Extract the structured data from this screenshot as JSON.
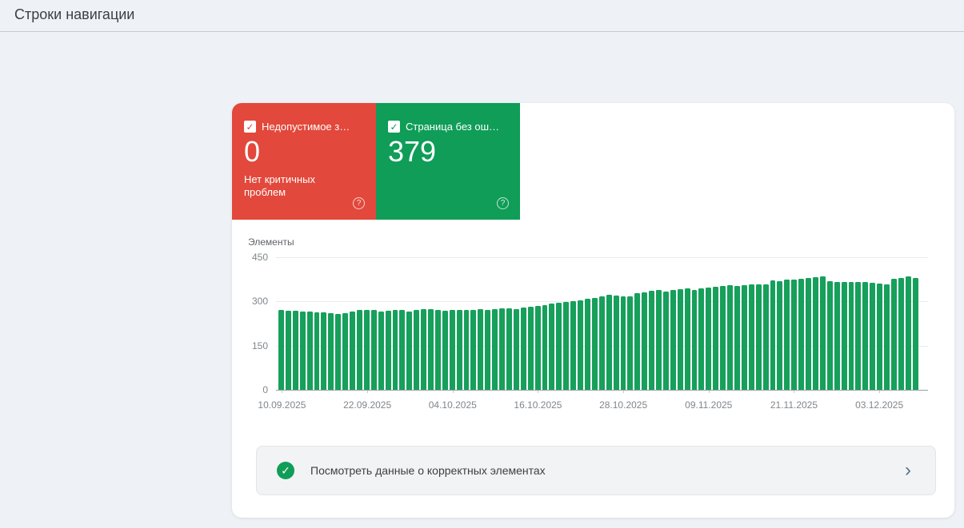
{
  "page": {
    "title": "Строки навигации"
  },
  "cards": [
    {
      "label": "Недопустимое з…",
      "value": "0",
      "sublabel": "Нет критичных проблем",
      "color": "#e2483b",
      "checkbox_checked": true,
      "help_icon": "?"
    },
    {
      "label": "Страница без ош…",
      "value": "379",
      "sublabel": "",
      "color": "#0f9d58",
      "checkbox_checked": true,
      "help_icon": "?"
    }
  ],
  "banner": {
    "label": "Посмотреть данные о корректных элементах"
  },
  "chart_data": {
    "type": "bar",
    "title": "",
    "xlabel": "",
    "ylabel": "Элементы",
    "ylim": [
      0,
      450
    ],
    "yticks": [
      0,
      150,
      300,
      450
    ],
    "grid": true,
    "legend": false,
    "bar_color": "#16a05b",
    "xtick_labels": [
      "10.09.2025",
      "22.09.2025",
      "04.10.2025",
      "16.10.2025",
      "28.10.2025",
      "09.11.2025",
      "21.11.2025",
      "03.12.2025"
    ],
    "xtick_every": 12,
    "values": [
      272,
      269,
      268,
      267,
      266,
      264,
      262,
      260,
      258,
      261,
      266,
      270,
      272,
      270,
      267,
      268,
      270,
      272,
      265,
      271,
      274,
      275,
      272,
      268,
      272,
      271,
      270,
      272,
      274,
      272,
      274,
      276,
      277,
      275,
      278,
      281,
      284,
      288,
      292,
      295,
      298,
      302,
      305,
      308,
      312,
      316,
      322,
      319,
      316,
      318,
      327,
      332,
      336,
      338,
      334,
      338,
      341,
      343,
      339,
      344,
      347,
      350,
      353,
      355,
      353,
      356,
      358,
      358,
      357,
      371,
      369,
      373,
      375,
      377,
      380,
      382,
      386,
      368,
      366,
      367,
      367,
      367,
      365,
      364,
      361,
      359,
      376,
      380,
      385,
      379
    ]
  }
}
